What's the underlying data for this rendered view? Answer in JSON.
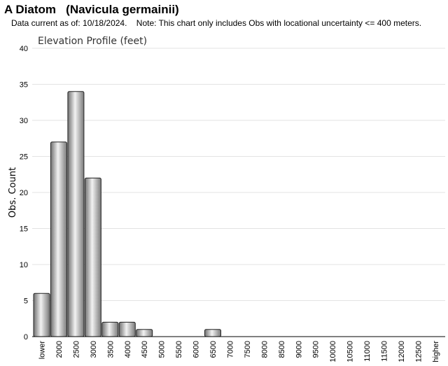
{
  "header": {
    "title": "A Diatom   (Navicula germainii)",
    "note": "Data current as of: 10/18/2024.    Note: This chart only includes Obs with locational uncertainty <= 400 meters."
  },
  "chart_data": {
    "type": "bar",
    "title": "Elevation Profile (feet)",
    "xlabel": "",
    "ylabel": "Obs. Count",
    "ylim": [
      0,
      40
    ],
    "yticks": [
      0,
      5,
      10,
      15,
      20,
      25,
      30,
      35,
      40
    ],
    "grid": true,
    "categories": [
      "lower",
      "2000",
      "2500",
      "3000",
      "3500",
      "4000",
      "4500",
      "5000",
      "5500",
      "6000",
      "6500",
      "7000",
      "7500",
      "8000",
      "8500",
      "9000",
      "9500",
      "10000",
      "10500",
      "11000",
      "11500",
      "12000",
      "12500",
      "higher"
    ],
    "values": [
      6,
      27,
      34,
      22,
      2,
      2,
      1,
      0,
      0,
      0,
      1,
      0,
      0,
      0,
      0,
      0,
      0,
      0,
      0,
      0,
      0,
      0,
      0,
      0
    ],
    "bar_color": "#b0b0b0"
  }
}
